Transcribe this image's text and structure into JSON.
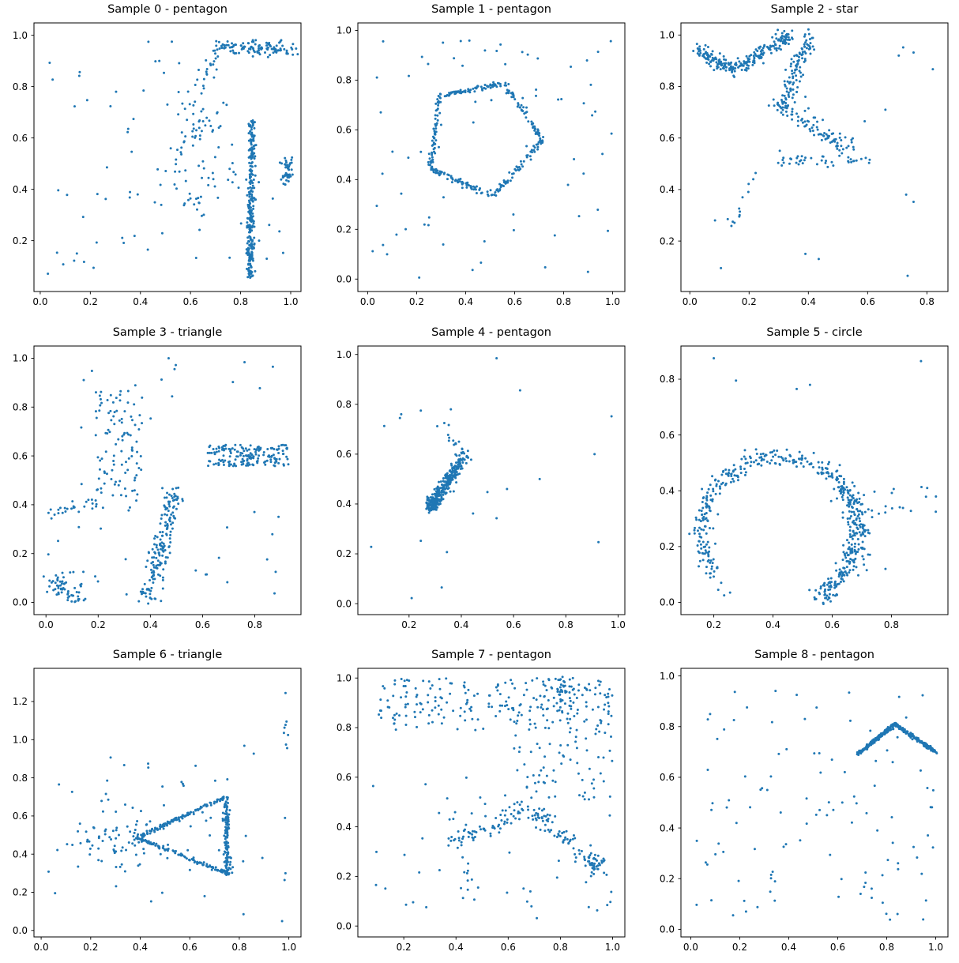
{
  "figure": {
    "background": "#ffffff",
    "point_color": "#1f77b4",
    "axis_color": "#000000",
    "title_color": "#000000",
    "rows": 3,
    "cols": 3
  },
  "chart_data": [
    {
      "type": "scatter",
      "title": "Sample 0 - pentagon",
      "xlim": [
        -0.025,
        1.041
      ],
      "ylim": [
        0.002,
        1.048
      ],
      "xticks": [
        0.0,
        0.2,
        0.4,
        0.6,
        0.8,
        1.0
      ],
      "yticks": [
        0.2,
        0.4,
        0.6,
        0.8,
        1.0
      ],
      "seed": 11,
      "elements": [
        {
          "kind": "segment",
          "from": [
            0.838,
            0.055
          ],
          "to": [
            0.845,
            0.665
          ],
          "n": 270,
          "jitter": 0.007
        },
        {
          "kind": "segment",
          "from": [
            0.705,
            0.955
          ],
          "to": [
            1.005,
            0.95
          ],
          "n": 115,
          "jitter": 0.016
        },
        {
          "kind": "cloud",
          "center": [
            0.985,
            0.468
          ],
          "sx": 0.012,
          "sy": 0.026,
          "n": 45
        },
        {
          "kind": "segment",
          "from": [
            0.64,
            0.77
          ],
          "to": [
            0.705,
            0.945
          ],
          "n": 22,
          "jitter": 0.022
        },
        {
          "kind": "uniform",
          "x": [
            0.52,
            0.78
          ],
          "y": [
            0.3,
            0.76
          ],
          "n": 60
        },
        {
          "kind": "cloud",
          "center": [
            0.645,
            0.655
          ],
          "sx": 0.035,
          "sy": 0.04,
          "n": 20
        },
        {
          "kind": "uniform",
          "x": [
            0.01,
            0.6
          ],
          "y": [
            0.05,
            0.99
          ],
          "n": 52
        },
        {
          "kind": "uniform",
          "x": [
            0.6,
            1.0
          ],
          "y": [
            0.08,
            0.45
          ],
          "n": 18
        }
      ]
    },
    {
      "type": "scatter",
      "title": "Sample 1 - pentagon",
      "xlim": [
        -0.04,
        1.05
      ],
      "ylim": [
        -0.05,
        1.03
      ],
      "xticks": [
        0.0,
        0.2,
        0.4,
        0.6,
        0.8,
        1.0
      ],
      "yticks": [
        0.0,
        0.2,
        0.4,
        0.6,
        0.8,
        1.0
      ],
      "seed": 22,
      "elements": [
        {
          "kind": "segment",
          "from": [
            0.258,
            0.445
          ],
          "to": [
            0.293,
            0.737
          ],
          "n": 60,
          "jitter": 0.005
        },
        {
          "kind": "segment",
          "from": [
            0.293,
            0.737
          ],
          "to": [
            0.558,
            0.787
          ],
          "n": 70,
          "jitter": 0.005
        },
        {
          "kind": "segment",
          "from": [
            0.558,
            0.787
          ],
          "to": [
            0.714,
            0.562
          ],
          "n": 62,
          "jitter": 0.006
        },
        {
          "kind": "segment",
          "from": [
            0.714,
            0.562
          ],
          "to": [
            0.512,
            0.332
          ],
          "n": 60,
          "jitter": 0.006
        },
        {
          "kind": "segment",
          "from": [
            0.512,
            0.332
          ],
          "to": [
            0.258,
            0.445
          ],
          "n": 70,
          "jitter": 0.006
        },
        {
          "kind": "uniform",
          "x": [
            0.01,
            1.0
          ],
          "y": [
            0.0,
            0.98
          ],
          "n": 72
        }
      ]
    },
    {
      "type": "scatter",
      "title": "Sample 2 - star",
      "xlim": [
        -0.03,
        0.871
      ],
      "ylim": [
        0.004,
        1.047
      ],
      "xticks": [
        0.0,
        0.2,
        0.4,
        0.6,
        0.8
      ],
      "yticks": [
        0.2,
        0.4,
        0.6,
        0.8,
        1.0
      ],
      "seed": 33,
      "elements": [
        {
          "kind": "segment",
          "from": [
            0.02,
            0.945
          ],
          "to": [
            0.145,
            0.862
          ],
          "n": 95,
          "jitter": 0.013
        },
        {
          "kind": "segment",
          "from": [
            0.145,
            0.862
          ],
          "to": [
            0.335,
            0.995
          ],
          "n": 140,
          "jitter": 0.013
        },
        {
          "kind": "segment",
          "from": [
            0.405,
            0.99
          ],
          "to": [
            0.308,
            0.72
          ],
          "n": 115,
          "jitter": 0.016
        },
        {
          "kind": "segment",
          "from": [
            0.308,
            0.72
          ],
          "to": [
            0.545,
            0.555
          ],
          "n": 90,
          "jitter": 0.016
        },
        {
          "kind": "segment",
          "from": [
            0.285,
            0.515
          ],
          "to": [
            0.6,
            0.508
          ],
          "n": 42,
          "jitter": 0.012
        },
        {
          "kind": "segment",
          "from": [
            0.225,
            0.497
          ],
          "to": [
            0.138,
            0.255
          ],
          "n": 13,
          "jitter": 0.012
        },
        {
          "kind": "points",
          "pts": [
            [
              0.105,
              0.095
            ],
            [
              0.085,
              0.28
            ],
            [
              0.39,
              0.15
            ],
            [
              0.435,
              0.13
            ],
            [
              0.66,
              0.71
            ],
            [
              0.59,
              0.665
            ],
            [
              0.73,
              0.38
            ],
            [
              0.755,
              0.352
            ],
            [
              0.735,
              0.065
            ],
            [
              0.82,
              0.867
            ],
            [
              0.755,
              0.932
            ],
            [
              0.705,
              0.92
            ],
            [
              0.72,
              0.952
            ],
            [
              0.39,
              0.76
            ]
          ]
        }
      ]
    },
    {
      "type": "scatter",
      "title": "Sample 3 - triangle",
      "xlim": [
        -0.046,
        0.977
      ],
      "ylim": [
        -0.05,
        1.05
      ],
      "xticks": [
        0.0,
        0.2,
        0.4,
        0.6,
        0.8
      ],
      "yticks": [
        0.0,
        0.2,
        0.4,
        0.6,
        0.8,
        1.0
      ],
      "seed": 44,
      "elements": [
        {
          "kind": "uniform",
          "x": [
            0.615,
            0.93
          ],
          "y": [
            0.558,
            0.645
          ],
          "n": 165
        },
        {
          "kind": "segment",
          "from": [
            0.39,
            0.015
          ],
          "to": [
            0.5,
            0.46
          ],
          "n": 165,
          "jitter": 0.02
        },
        {
          "kind": "segment",
          "from": [
            0.025,
            0.095
          ],
          "to": [
            0.135,
            0.01
          ],
          "n": 58,
          "jitter": 0.022
        },
        {
          "kind": "segment",
          "from": [
            0.0,
            0.35
          ],
          "to": [
            0.205,
            0.42
          ],
          "n": 26,
          "jitter": 0.013
        },
        {
          "kind": "uniform",
          "x": [
            0.19,
            0.37
          ],
          "y": [
            0.38,
            0.87
          ],
          "n": 95
        },
        {
          "kind": "uniform",
          "x": [
            0.0,
            0.93
          ],
          "y": [
            0.0,
            1.0
          ],
          "n": 55
        }
      ]
    },
    {
      "type": "scatter",
      "title": "Sample 4 - pentagon",
      "xlim": [
        0.004,
        1.026
      ],
      "ylim": [
        -0.044,
        1.034
      ],
      "xticks": [
        0.2,
        0.4,
        0.6,
        0.8,
        1.0
      ],
      "yticks": [
        0.0,
        0.2,
        0.4,
        0.6,
        0.8,
        1.0
      ],
      "seed": 55,
      "elements": [
        {
          "kind": "segment",
          "from": [
            0.287,
            0.393
          ],
          "to": [
            0.418,
            0.6
          ],
          "n": 330,
          "jitter": 0.013,
          "bias": 2.0
        },
        {
          "kind": "segment",
          "from": [
            0.418,
            0.612
          ],
          "to": [
            0.348,
            0.672
          ],
          "n": 10,
          "jitter": 0.006
        },
        {
          "kind": "points",
          "pts": [
            [
              0.335,
              0.725
            ],
            [
              0.352,
              0.717
            ],
            [
              0.308,
              0.712
            ],
            [
              0.36,
              0.78
            ],
            [
              0.245,
              0.775
            ],
            [
              0.17,
              0.76
            ],
            [
              0.165,
              0.745
            ],
            [
              0.105,
              0.713
            ],
            [
              0.535,
              0.985
            ],
            [
              0.625,
              0.856
            ],
            [
              0.975,
              0.752
            ],
            [
              0.91,
              0.6
            ],
            [
              0.7,
              0.5
            ],
            [
              0.575,
              0.46
            ],
            [
              0.5,
              0.448
            ],
            [
              0.445,
              0.362
            ],
            [
              0.535,
              0.343
            ],
            [
              0.925,
              0.247
            ],
            [
              0.055,
              0.228
            ],
            [
              0.245,
              0.252
            ],
            [
              0.345,
              0.207
            ],
            [
              0.325,
              0.065
            ],
            [
              0.21,
              0.022
            ]
          ]
        }
      ]
    },
    {
      "type": "scatter",
      "title": "Sample 5 - circle",
      "xlim": [
        0.089,
        0.991
      ],
      "ylim": [
        -0.044,
        0.919
      ],
      "xticks": [
        0.2,
        0.4,
        0.6,
        0.8
      ],
      "yticks": [
        0.0,
        0.2,
        0.4,
        0.6,
        0.8
      ],
      "seed": 66,
      "elements": [
        {
          "kind": "arc",
          "center": [
            0.42,
            0.255
          ],
          "r": 0.262,
          "a0": -62,
          "a1": 215,
          "n": 430,
          "jitter": 0.016
        },
        {
          "kind": "arc",
          "center": [
            0.425,
            0.258
          ],
          "r": 0.268,
          "a0": -60,
          "a1": 40,
          "n": 110,
          "jitter": 0.02
        },
        {
          "kind": "points",
          "pts": [
            [
              0.215,
              0.045
            ],
            [
              0.235,
              0.025
            ],
            [
              0.225,
              0.07
            ],
            [
              0.255,
              0.035
            ]
          ]
        },
        {
          "kind": "uniform",
          "x": [
            0.73,
            0.96
          ],
          "y": [
            0.315,
            0.42
          ],
          "n": 15
        },
        {
          "kind": "points",
          "pts": [
            [
              0.2,
              0.875
            ],
            [
              0.275,
              0.795
            ],
            [
              0.48,
              0.765
            ],
            [
              0.525,
              0.78
            ],
            [
              0.9,
              0.865
            ],
            [
              0.78,
              0.12
            ],
            [
              0.95,
              0.325
            ]
          ]
        }
      ]
    },
    {
      "type": "scatter",
      "title": "Sample 6 - triangle",
      "xlim": [
        -0.029,
        1.049
      ],
      "ylim": [
        -0.034,
        1.374
      ],
      "xticks": [
        0.0,
        0.2,
        0.4,
        0.6,
        0.8,
        1.0
      ],
      "yticks": [
        0.0,
        0.2,
        0.4,
        0.6,
        0.8,
        1.0,
        1.2
      ],
      "seed": 77,
      "elements": [
        {
          "kind": "segment",
          "from": [
            0.385,
            0.487
          ],
          "to": [
            0.748,
            0.7
          ],
          "n": 115,
          "jitter": 0.005
        },
        {
          "kind": "segment",
          "from": [
            0.748,
            0.7
          ],
          "to": [
            0.753,
            0.298
          ],
          "n": 130,
          "jitter": 0.006
        },
        {
          "kind": "segment",
          "from": [
            0.753,
            0.298
          ],
          "to": [
            0.385,
            0.487
          ],
          "n": 115,
          "jitter": 0.005
        },
        {
          "kind": "cloud",
          "center": [
            0.33,
            0.48
          ],
          "sx": 0.085,
          "sy": 0.085,
          "n": 80
        },
        {
          "kind": "uniform",
          "x": [
            0.975,
            1.0
          ],
          "y": [
            0.95,
            1.32
          ],
          "n": 8
        },
        {
          "kind": "uniform",
          "x": [
            0.02,
            1.0
          ],
          "y": [
            0.03,
            1.0
          ],
          "n": 42
        }
      ]
    },
    {
      "type": "scatter",
      "title": "Sample 7 - pentagon",
      "xlim": [
        0.024,
        1.047
      ],
      "ylim": [
        -0.044,
        1.039
      ],
      "xticks": [
        0.2,
        0.4,
        0.6,
        0.8,
        1.0
      ],
      "yticks": [
        0.0,
        0.2,
        0.4,
        0.6,
        0.8,
        1.0
      ],
      "seed": 88,
      "elements": [
        {
          "kind": "uniform",
          "x": [
            0.1,
            1.0
          ],
          "y": [
            0.79,
            1.0
          ],
          "n": 190
        },
        {
          "kind": "uniform",
          "x": [
            0.55,
            1.0
          ],
          "y": [
            0.82,
            1.0
          ],
          "n": 55
        },
        {
          "kind": "cloud",
          "center": [
            0.805,
            0.955
          ],
          "sx": 0.013,
          "sy": 0.02,
          "n": 22
        },
        {
          "kind": "uniform",
          "x": [
            0.62,
            1.0
          ],
          "y": [
            0.5,
            0.8
          ],
          "n": 70
        },
        {
          "kind": "segment",
          "from": [
            0.4,
            0.335
          ],
          "to": [
            0.68,
            0.48
          ],
          "n": 70,
          "jitter": 0.02
        },
        {
          "kind": "segment",
          "from": [
            0.68,
            0.48
          ],
          "to": [
            0.955,
            0.215
          ],
          "n": 80,
          "jitter": 0.02
        },
        {
          "kind": "cloud",
          "center": [
            0.945,
            0.245
          ],
          "sx": 0.018,
          "sy": 0.03,
          "n": 22
        },
        {
          "kind": "segment",
          "from": [
            0.425,
            0.32
          ],
          "to": [
            0.455,
            0.1
          ],
          "n": 13,
          "jitter": 0.018
        },
        {
          "kind": "uniform",
          "x": [
            0.07,
            0.6
          ],
          "y": [
            0.05,
            0.6
          ],
          "n": 28
        },
        {
          "kind": "uniform",
          "x": [
            0.6,
            1.0
          ],
          "y": [
            0.02,
            0.5
          ],
          "n": 20
        }
      ]
    },
    {
      "type": "scatter",
      "title": "Sample 8 - pentagon",
      "xlim": [
        -0.04,
        1.05
      ],
      "ylim": [
        -0.03,
        1.03
      ],
      "xticks": [
        0.0,
        0.2,
        0.4,
        0.6,
        0.8,
        1.0
      ],
      "yticks": [
        0.0,
        0.2,
        0.4,
        0.6,
        0.8,
        1.0
      ],
      "seed": 99,
      "elements": [
        {
          "kind": "segment",
          "from": [
            0.683,
            0.693
          ],
          "to": [
            0.834,
            0.81
          ],
          "n": 165,
          "jitter": 0.0035
        },
        {
          "kind": "segment",
          "from": [
            0.834,
            0.81
          ],
          "to": [
            1.003,
            0.696
          ],
          "n": 165,
          "jitter": 0.0035
        },
        {
          "kind": "uniform",
          "x": [
            0.0,
            1.0
          ],
          "y": [
            0.02,
            0.62
          ],
          "n": 80
        },
        {
          "kind": "uniform",
          "x": [
            0.0,
            1.0
          ],
          "y": [
            0.62,
            1.0
          ],
          "n": 32
        }
      ]
    }
  ]
}
